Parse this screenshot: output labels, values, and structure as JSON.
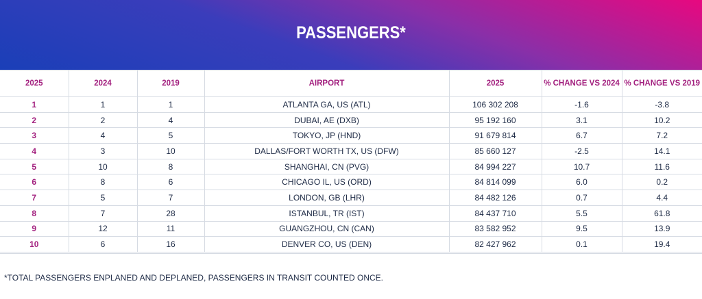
{
  "header": {
    "title": "PASSENGERS*"
  },
  "table": {
    "columns": [
      "2025",
      "2024",
      "2019",
      "AIRPORT",
      "2025",
      "% CHANGE VS 2024",
      "% CHANGE VS 2019"
    ],
    "rows": [
      [
        "1",
        "1",
        "1",
        "ATLANTA GA, US (ATL)",
        "106 302 208",
        "-1.6",
        "-3.8"
      ],
      [
        "2",
        "2",
        "4",
        "DUBAI, AE (DXB)",
        "95 192 160",
        "3.1",
        "10.2"
      ],
      [
        "3",
        "4",
        "5",
        "TOKYO, JP (HND)",
        "91 679 814",
        "6.7",
        "7.2"
      ],
      [
        "4",
        "3",
        "10",
        "DALLAS/FORT WORTH TX, US (DFW)",
        "85 660 127",
        "-2.5",
        "14.1"
      ],
      [
        "5",
        "10",
        "8",
        "SHANGHAI, CN (PVG)",
        "84 994 227",
        "10.7",
        "11.6"
      ],
      [
        "6",
        "8",
        "6",
        "CHICAGO IL, US (ORD)",
        "84 814 099",
        "6.0",
        "0.2"
      ],
      [
        "7",
        "5",
        "7",
        "LONDON, GB (LHR)",
        "84 482 126",
        "0.7",
        "4.4"
      ],
      [
        "8",
        "7",
        "28",
        "ISTANBUL, TR (IST)",
        "84 437 710",
        "5.5",
        "61.8"
      ],
      [
        "9",
        "12",
        "11",
        "GUANGZHOU, CN (CAN)",
        "83 582 952",
        "9.5",
        "13.9"
      ],
      [
        "10",
        "6",
        "16",
        "DENVER CO, US (DEN)",
        "82 427 962",
        "0.1",
        "19.4"
      ]
    ]
  },
  "footnote": "*TOTAL PASSENGERS ENPLANED AND DEPLANED, PASSENGERS IN TRANSIT COUNTED ONCE."
}
